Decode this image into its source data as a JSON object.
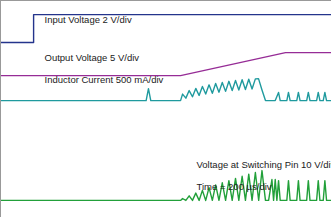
{
  "chart_data": {
    "type": "line",
    "tick_labels": false,
    "grid": false,
    "xlim": [
      0,
      2000
    ],
    "ylim": [
      0,
      8
    ],
    "annotations": [
      "Input Voltage 2 V/div",
      "Output Voltage 5 V/div",
      "Inductor Current 500 mA/div",
      "Voltage at Switching Pin 10 V/div",
      "Time = 200 µs/div"
    ],
    "series": [
      {
        "name": "Input Voltage",
        "color": "#24348c",
        "x": [
          0,
          200,
          200,
          2000
        ],
        "values": [
          6.45,
          6.45,
          7.48,
          7.48
        ]
      },
      {
        "name": "Output Voltage",
        "color": "#962c96",
        "x": [
          0,
          1088,
          1722,
          2000
        ],
        "values": [
          5.23,
          5.23,
          6.08,
          6.08
        ]
      },
      {
        "name": "Inductor Current",
        "color": "#1f9a9e",
        "x": [
          0,
          880,
          894,
          908,
          1088,
          1100,
          1120,
          1140,
          1160,
          1180,
          1200,
          1220,
          1240,
          1260,
          1280,
          1300,
          1320,
          1340,
          1360,
          1380,
          1400,
          1420,
          1440,
          1460,
          1480,
          1500,
          1520,
          1540,
          1559,
          1580,
          1601,
          1660,
          1680,
          1690,
          1730,
          1740,
          1750,
          1790,
          1800,
          1810,
          1850,
          1860,
          1870,
          1910,
          1920,
          1930,
          1950,
          1960,
          1970,
          2000
        ],
        "values": [
          4.31,
          4.31,
          4.75,
          4.31,
          4.31,
          4.55,
          4.4,
          4.68,
          4.45,
          4.76,
          4.5,
          4.83,
          4.55,
          4.89,
          4.58,
          4.94,
          4.62,
          4.98,
          4.65,
          5.02,
          4.68,
          5.05,
          4.7,
          5.08,
          4.72,
          5.1,
          4.74,
          5.11,
          5.12,
          4.7,
          4.31,
          4.31,
          4.61,
          4.31,
          4.31,
          4.61,
          4.31,
          4.31,
          4.61,
          4.31,
          4.31,
          4.61,
          4.31,
          4.31,
          4.61,
          4.31,
          4.31,
          4.61,
          4.31,
          4.31
        ]
      },
      {
        "name": "Voltage at Switching Pin",
        "color": "#22a03a",
        "x": [
          0,
          1088,
          1100,
          1120,
          1140,
          1160,
          1180,
          1200,
          1220,
          1240,
          1260,
          1280,
          1300,
          1320,
          1340,
          1360,
          1380,
          1400,
          1420,
          1440,
          1460,
          1480,
          1500,
          1520,
          1540,
          1560,
          1580,
          1601,
          1620,
          1640,
          1650,
          1660,
          1670,
          1680,
          1690,
          1730,
          1740,
          1750,
          1790,
          1800,
          1810,
          1850,
          1860,
          1870,
          1910,
          1920,
          1930,
          1950,
          1960,
          1970,
          2000
        ],
        "values": [
          0.63,
          0.63,
          0.7,
          0.63,
          0.8,
          0.63,
          0.9,
          0.63,
          1.0,
          0.63,
          1.1,
          0.63,
          1.2,
          0.63,
          1.28,
          0.63,
          1.36,
          0.63,
          1.44,
          0.63,
          1.52,
          0.63,
          1.6,
          0.63,
          1.66,
          0.63,
          1.73,
          0.63,
          0.63,
          1.4,
          0.63,
          1.4,
          0.63,
          1.36,
          0.63,
          0.63,
          1.36,
          0.63,
          0.63,
          1.36,
          0.63,
          0.63,
          1.36,
          0.63,
          0.63,
          1.36,
          0.63,
          0.63,
          1.36,
          0.63,
          0.63
        ]
      }
    ]
  }
}
